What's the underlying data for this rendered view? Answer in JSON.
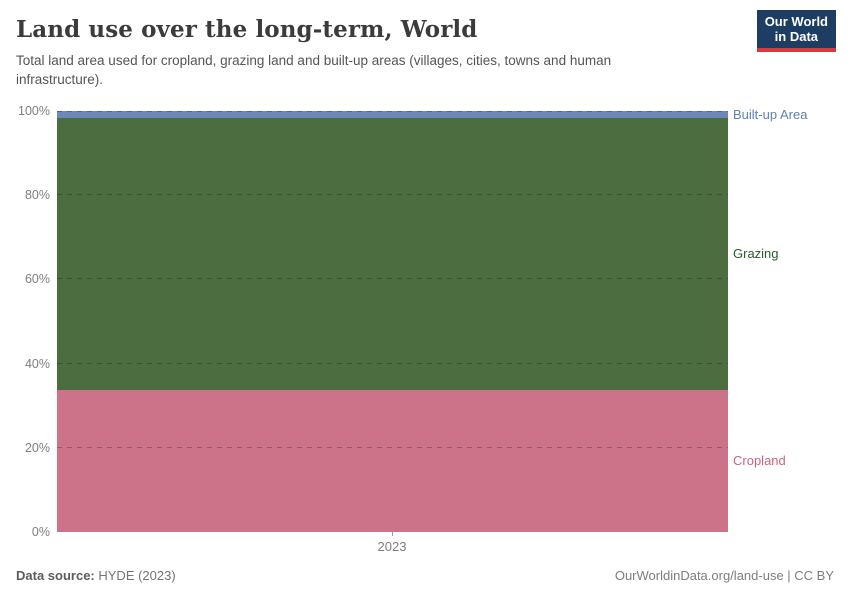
{
  "header": {
    "title": "Land use over the long-term, World",
    "subtitle": "Total land area used for cropland, grazing land and built-up areas (villages, cities, towns and human infrastructure).",
    "logo_line1": "Our World",
    "logo_line2": "in Data",
    "logo_bg_color": "#1d3d63",
    "logo_accent_color": "#e0373e"
  },
  "chart_data": {
    "type": "area",
    "stacked": true,
    "stacking": "percent",
    "x": [
      2023
    ],
    "categories": [
      "2023"
    ],
    "series": [
      {
        "name": "Cropland",
        "values": [
          33.7
        ],
        "color": "#cd7389",
        "label_color": "#c9657e"
      },
      {
        "name": "Grazing",
        "values": [
          64.6
        ],
        "color": "#4c6d3f",
        "label_color": "#2c5b2d"
      },
      {
        "name": "Built-up Area",
        "values": [
          1.7
        ],
        "color": "#6c87b8",
        "label_color": "#6180b0"
      }
    ],
    "title": "Land use over the long-term, World",
    "xlabel": "",
    "ylabel": "",
    "ylim": [
      0,
      100
    ],
    "yticks": [
      "0%",
      "20%",
      "40%",
      "60%",
      "80%",
      "100%"
    ],
    "xticks": [
      "2023"
    ],
    "grid": "dashed-horizontal",
    "legend_position": "right-of-plot-inline-labels"
  },
  "footer": {
    "source_label": "Data source:",
    "source_value": "HYDE (2023)",
    "credit": "OurWorldinData.org/land-use | CC BY"
  }
}
